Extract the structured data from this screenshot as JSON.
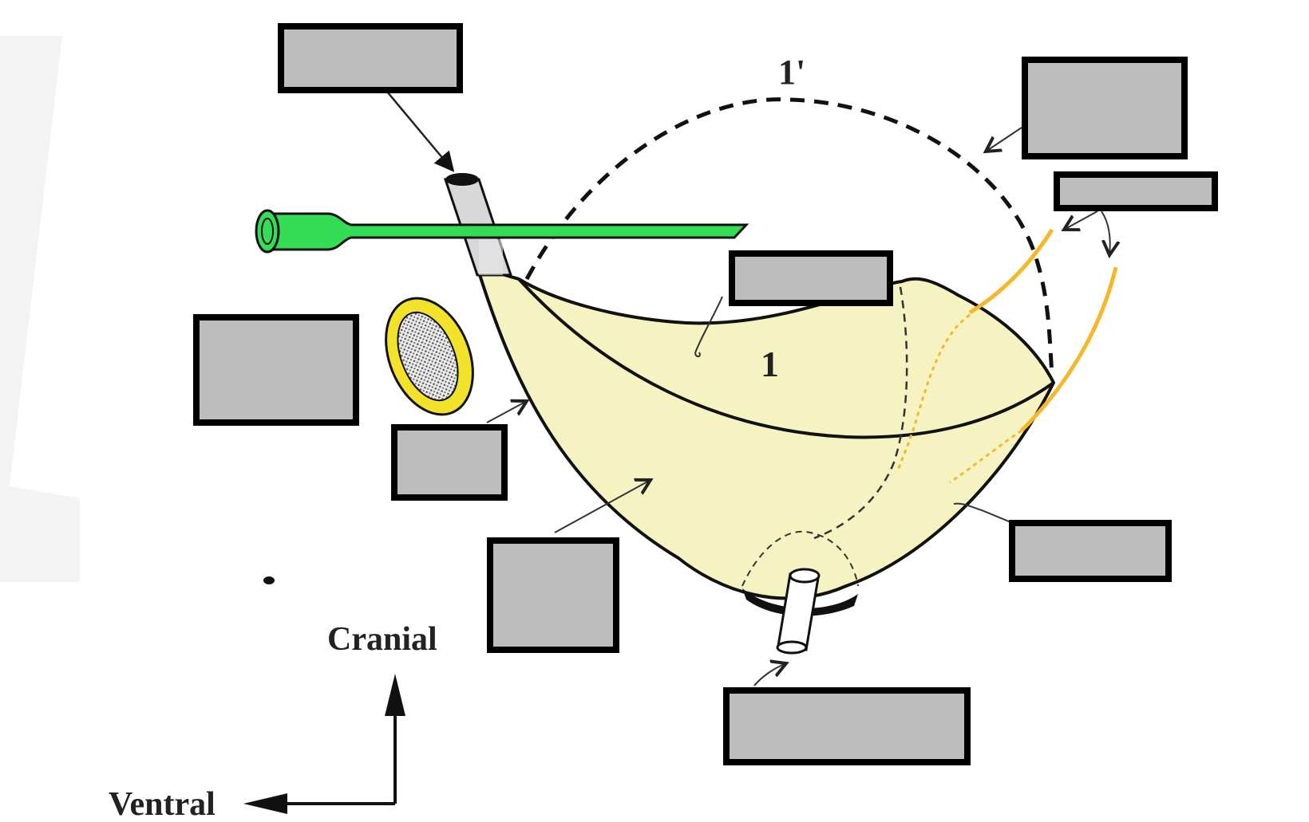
{
  "diagram": {
    "markers": {
      "dashed_outline_label": "1'",
      "sac_label": "1"
    },
    "orientation": {
      "vertical_label": "Cranial",
      "horizontal_label": "Ventral"
    },
    "label_boxes": [
      {
        "id": "box-top-left",
        "text": ""
      },
      {
        "id": "box-top-right",
        "text": ""
      },
      {
        "id": "box-right-small",
        "text": ""
      },
      {
        "id": "box-center-top",
        "text": ""
      },
      {
        "id": "box-left",
        "text": ""
      },
      {
        "id": "box-left-small",
        "text": ""
      },
      {
        "id": "box-bottom-center-left",
        "text": ""
      },
      {
        "id": "box-right-lower",
        "text": ""
      },
      {
        "id": "box-bottom",
        "text": ""
      }
    ],
    "colors": {
      "sac_fill": "#f6f3c2",
      "green_tube": "#33dd55",
      "yellow_ring": "#f2e22a",
      "yellow_lines": "#f5b82a",
      "box_fill": "#bdbdbd"
    }
  }
}
